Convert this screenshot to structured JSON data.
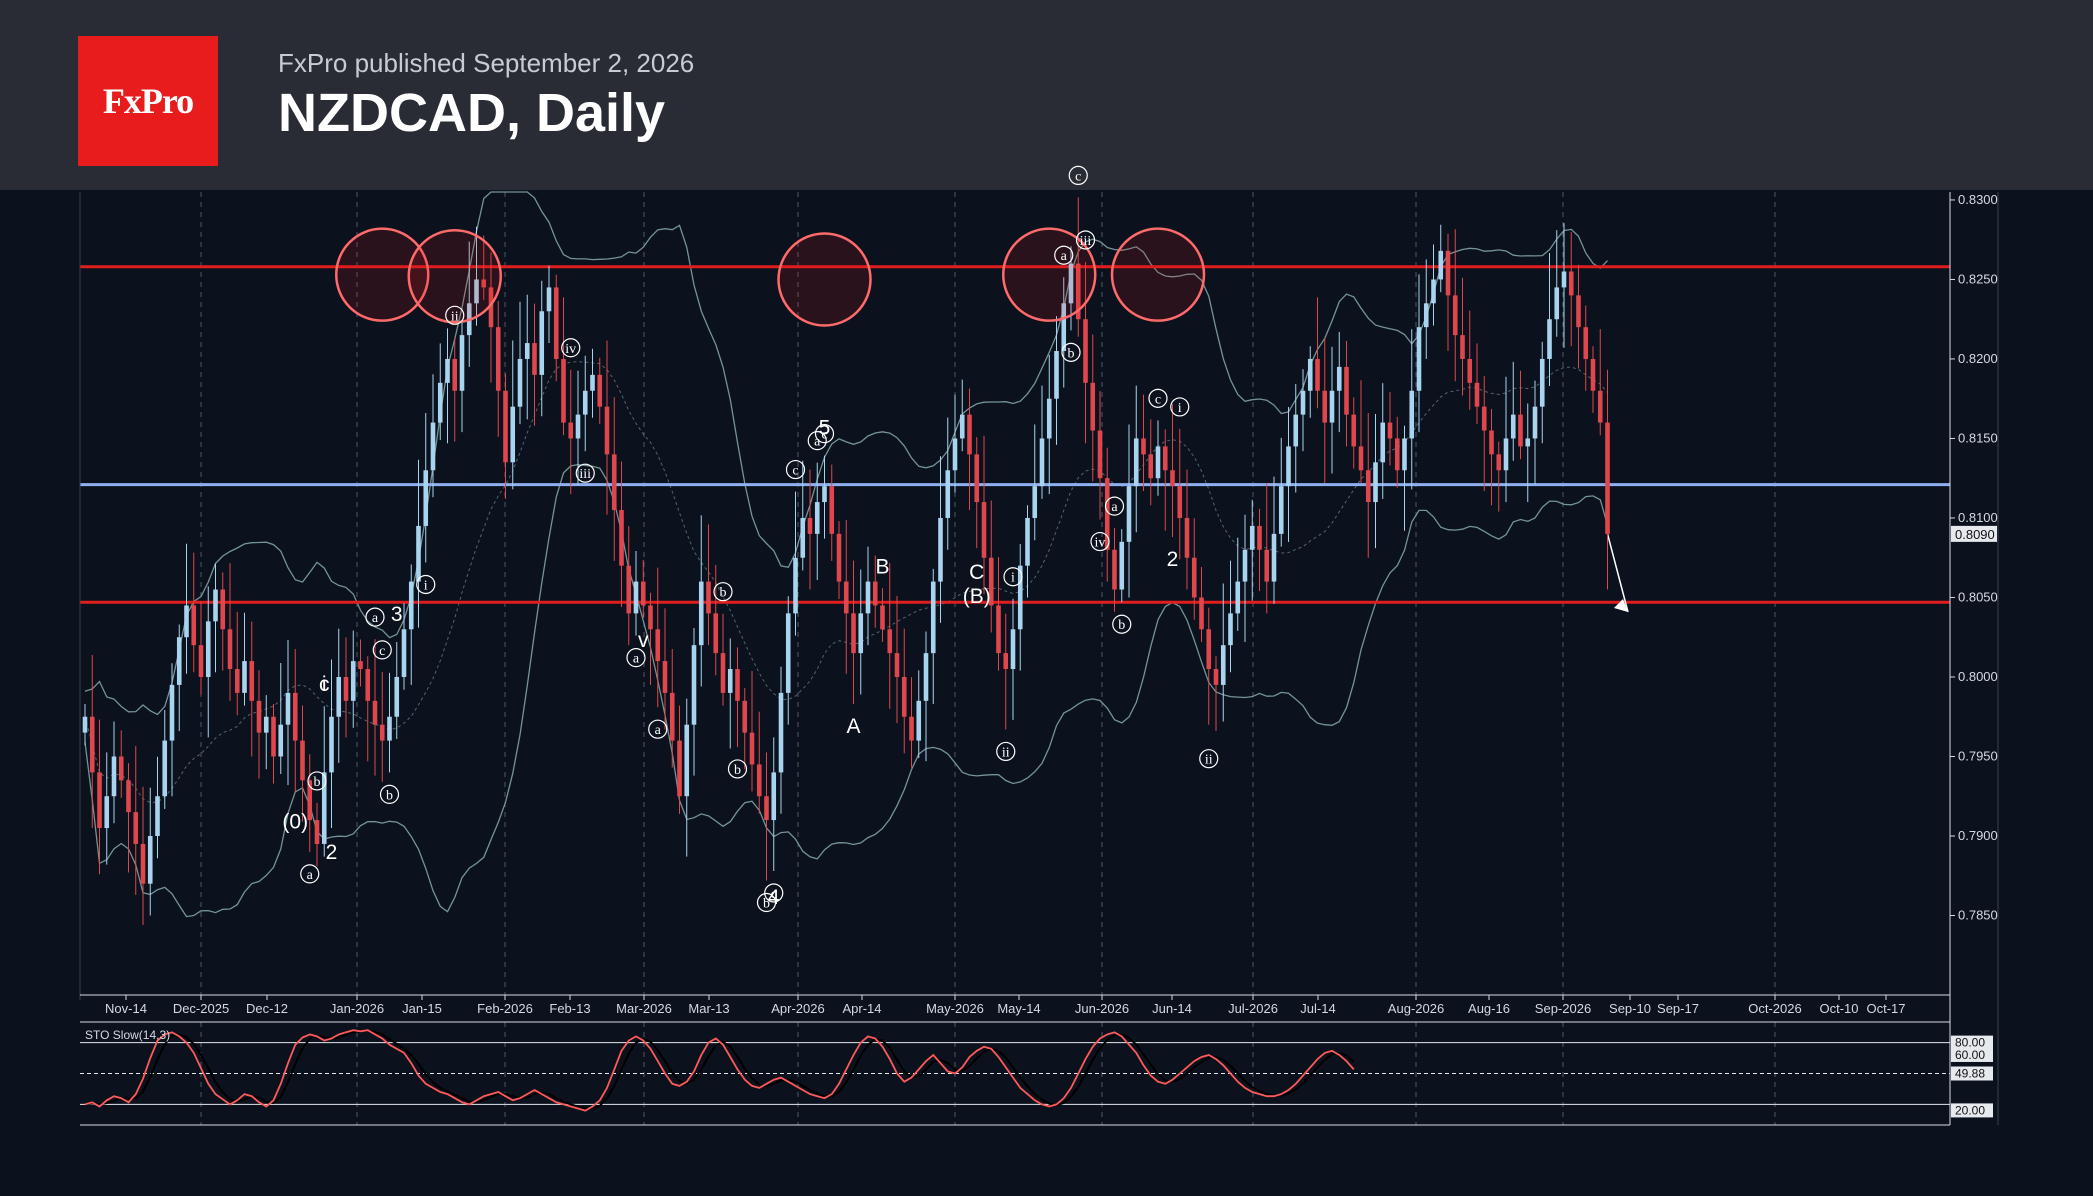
{
  "header": {
    "logo_text": "FxPro",
    "published": "FxPro published September 2, 2026",
    "title": "NZDCAD, Daily"
  },
  "colors": {
    "background": "#0b111d",
    "header": "#2a2c35",
    "logo": "#e81c1c",
    "bull_candle": "#a9d4ef",
    "bear_candle": "#e0474c",
    "resistance": "#e01e1e",
    "pivot": "#8fb0f0",
    "bands": "#7fa3a3",
    "stochastic": "#ff5a5a"
  },
  "chart_data": [
    {
      "type": "candlestick",
      "symbol": "NZDCAD",
      "timeframe": "Daily",
      "x_ticks": [
        "Nov-14",
        "Dec-2025",
        "Dec-12",
        "Jan-2026",
        "Jan-15",
        "Feb-2026",
        "Feb-13",
        "Mar-2026",
        "Mar-13",
        "Apr-2026",
        "Apr-14",
        "May-2026",
        "May-14",
        "Jun-2026",
        "Jun-14",
        "Jul-2026",
        "Jul-14",
        "Aug-2026",
        "Aug-16",
        "Sep-2026",
        "Sep-10",
        "Sep-17",
        "Oct-2026",
        "Oct-10",
        "Oct-17"
      ],
      "y_ticks": [
        0.83,
        0.825,
        0.82,
        0.815,
        0.81,
        0.805,
        0.8,
        0.795,
        0.79,
        0.785
      ],
      "ylim": [
        0.78,
        0.8305
      ],
      "last_price": 0.809,
      "horizontal_levels": [
        {
          "value": 0.8258,
          "color": "#e01e1e"
        },
        {
          "value": 0.8121,
          "color": "#8fb0f0"
        },
        {
          "value": 0.8047,
          "color": "#e01e1e"
        }
      ],
      "closes": [
        0.7975,
        0.794,
        0.7905,
        0.7925,
        0.795,
        0.7935,
        0.7915,
        0.7895,
        0.787,
        0.79,
        0.7925,
        0.796,
        0.7995,
        0.8025,
        0.8045,
        0.802,
        0.8,
        0.8035,
        0.8055,
        0.803,
        0.8005,
        0.799,
        0.801,
        0.7985,
        0.7965,
        0.7975,
        0.795,
        0.797,
        0.799,
        0.796,
        0.7935,
        0.791,
        0.7895,
        0.794,
        0.7975,
        0.8,
        0.7985,
        0.801,
        0.8005,
        0.7985,
        0.797,
        0.796,
        0.7975,
        0.8,
        0.803,
        0.806,
        0.8095,
        0.813,
        0.816,
        0.8185,
        0.82,
        0.818,
        0.8215,
        0.8235,
        0.825,
        0.8245,
        0.822,
        0.818,
        0.8135,
        0.817,
        0.82,
        0.821,
        0.819,
        0.823,
        0.8245,
        0.82,
        0.816,
        0.815,
        0.8165,
        0.818,
        0.819,
        0.817,
        0.814,
        0.8105,
        0.807,
        0.804,
        0.806,
        0.8045,
        0.803,
        0.801,
        0.799,
        0.796,
        0.7925,
        0.797,
        0.802,
        0.806,
        0.804,
        0.8015,
        0.799,
        0.8005,
        0.7985,
        0.7965,
        0.7945,
        0.7925,
        0.791,
        0.794,
        0.799,
        0.804,
        0.8075,
        0.81,
        0.809,
        0.811,
        0.812,
        0.809,
        0.806,
        0.804,
        0.8015,
        0.804,
        0.806,
        0.8045,
        0.803,
        0.8015,
        0.8,
        0.7975,
        0.796,
        0.7985,
        0.8015,
        0.806,
        0.81,
        0.813,
        0.815,
        0.8165,
        0.814,
        0.811,
        0.8075,
        0.8045,
        0.8015,
        0.8005,
        0.803,
        0.807,
        0.81,
        0.812,
        0.815,
        0.8175,
        0.8205,
        0.8235,
        0.826,
        0.8225,
        0.8185,
        0.8155,
        0.8125,
        0.808,
        0.8055,
        0.8085,
        0.812,
        0.815,
        0.814,
        0.8125,
        0.8145,
        0.813,
        0.812,
        0.81,
        0.8075,
        0.805,
        0.803,
        0.8005,
        0.7995,
        0.802,
        0.804,
        0.806,
        0.808,
        0.8095,
        0.808,
        0.806,
        0.809,
        0.812,
        0.8145,
        0.8165,
        0.818,
        0.82,
        0.818,
        0.816,
        0.818,
        0.8195,
        0.8165,
        0.8145,
        0.813,
        0.811,
        0.8135,
        0.816,
        0.815,
        0.813,
        0.815,
        0.818,
        0.822,
        0.8235,
        0.825,
        0.8268,
        0.824,
        0.8215,
        0.82,
        0.8185,
        0.817,
        0.8155,
        0.814,
        0.813,
        0.815,
        0.8165,
        0.8145,
        0.815,
        0.817,
        0.82,
        0.8225,
        0.8245,
        0.8255,
        0.824,
        0.822,
        0.82,
        0.818,
        0.816,
        0.809
      ],
      "stoch_k": [
        20,
        22,
        18,
        24,
        28,
        26,
        22,
        30,
        45,
        65,
        82,
        88,
        90,
        86,
        80,
        70,
        55,
        40,
        30,
        25,
        20,
        24,
        30,
        28,
        22,
        18,
        24,
        40,
        60,
        78,
        85,
        88,
        86,
        82,
        84,
        88,
        90,
        92,
        91,
        92,
        88,
        84,
        78,
        74,
        70,
        60,
        48,
        40,
        36,
        32,
        30,
        26,
        22,
        20,
        24,
        28,
        30,
        32,
        28,
        24,
        26,
        30,
        34,
        30,
        26,
        22,
        20,
        18,
        16,
        14,
        18,
        24,
        36,
        54,
        72,
        82,
        86,
        82,
        74,
        62,
        50,
        40,
        38,
        42,
        52,
        68,
        80,
        84,
        78,
        66,
        54,
        44,
        38,
        36,
        40,
        44,
        46,
        42,
        38,
        34,
        30,
        28,
        26,
        30,
        40,
        54,
        68,
        80,
        86,
        84,
        76,
        64,
        50,
        42,
        46,
        54,
        62,
        68,
        60,
        52,
        50,
        56,
        66,
        72,
        76,
        74,
        66,
        56,
        46,
        36,
        30,
        24,
        20,
        18,
        20,
        26,
        36,
        50,
        64,
        76,
        84,
        88,
        90,
        86,
        78,
        70,
        58,
        48,
        42,
        40,
        44,
        50,
        56,
        62,
        66,
        68,
        64,
        58,
        50,
        42,
        36,
        32,
        30,
        28,
        28,
        30,
        34,
        40,
        48,
        56,
        64,
        70,
        72,
        68,
        62,
        54
      ]
    }
  ],
  "stochastic": {
    "label": "STO Slow(14,3)",
    "level_high": "80.00",
    "level_mid": "60.00",
    "current": "49.88",
    "level_low": "20.00"
  },
  "wave_labels": [
    {
      "text": "(0)"
    },
    {
      "text": "a"
    },
    {
      "text": "b"
    },
    {
      "text": "c"
    },
    {
      "text": "i"
    },
    {
      "text": "2"
    },
    {
      "text": "3"
    },
    {
      "text": "c"
    },
    {
      "text": "a"
    },
    {
      "text": "b"
    },
    {
      "text": "ii"
    },
    {
      "text": "i"
    },
    {
      "text": "iii"
    },
    {
      "text": "iv"
    },
    {
      "text": "v"
    },
    {
      "text": "a"
    },
    {
      "text": "a"
    },
    {
      "text": "b"
    },
    {
      "text": "b"
    },
    {
      "text": "c"
    },
    {
      "text": "a"
    },
    {
      "text": "b"
    },
    {
      "text": "c"
    },
    {
      "text": "4"
    },
    {
      "text": "5"
    },
    {
      "text": "c"
    },
    {
      "text": "A"
    },
    {
      "text": "B"
    },
    {
      "text": "C"
    },
    {
      "text": "(B)"
    },
    {
      "text": "i"
    },
    {
      "text": "ii"
    },
    {
      "text": "a"
    },
    {
      "text": "b"
    },
    {
      "text": "c"
    },
    {
      "text": "iii"
    },
    {
      "text": "iv"
    },
    {
      "text": "a"
    },
    {
      "text": "b"
    },
    {
      "text": "c"
    },
    {
      "text": "2"
    },
    {
      "text": "i"
    },
    {
      "text": "ii"
    }
  ]
}
